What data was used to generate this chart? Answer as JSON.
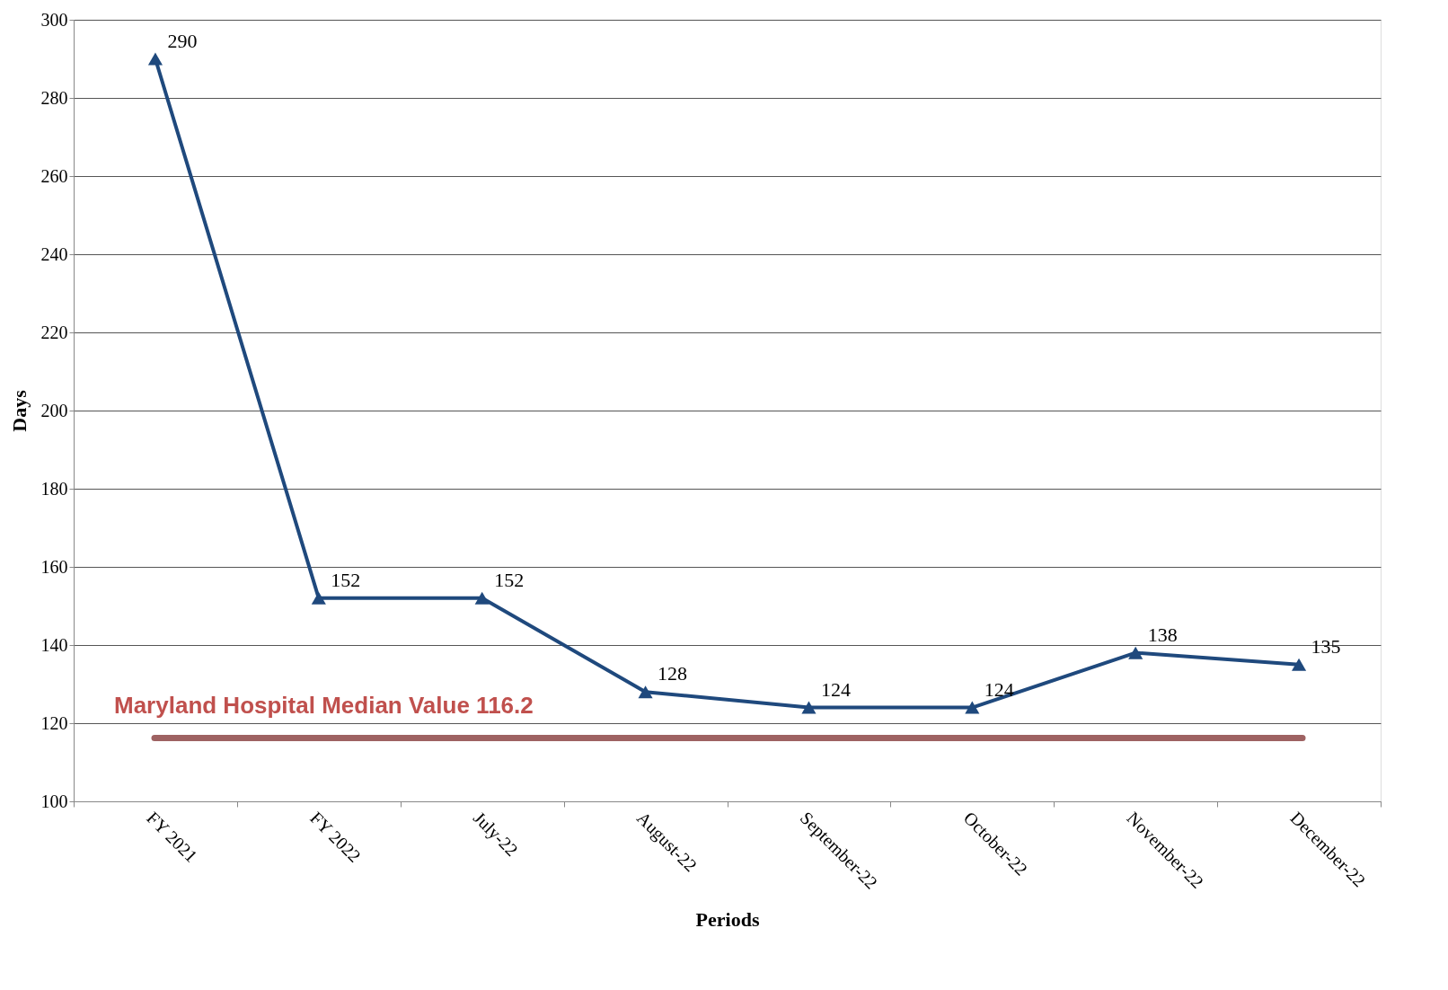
{
  "chart_data": {
    "type": "line",
    "xlabel": "Periods",
    "ylabel": "Days",
    "categories": [
      "FY 2021",
      "FY 2022",
      "July-22",
      "August-22",
      "September-22",
      "October-22",
      "November-22",
      "December-22"
    ],
    "series": [
      {
        "color": "#1f497d",
        "values": [
          290,
          152,
          152,
          128,
          124,
          124,
          138,
          135
        ]
      }
    ],
    "ylim": [
      100,
      300
    ],
    "yticks": [
      100,
      120,
      140,
      160,
      180,
      200,
      220,
      240,
      260,
      280,
      300
    ],
    "grid": "y",
    "marker": "triangle",
    "line_style": "solid",
    "data_labels": true,
    "ref_lines": [
      {
        "axis": "y",
        "value": 116.2,
        "label": "Maryland Hospital Median Value 116.2",
        "color": "#9e6262"
      }
    ]
  }
}
